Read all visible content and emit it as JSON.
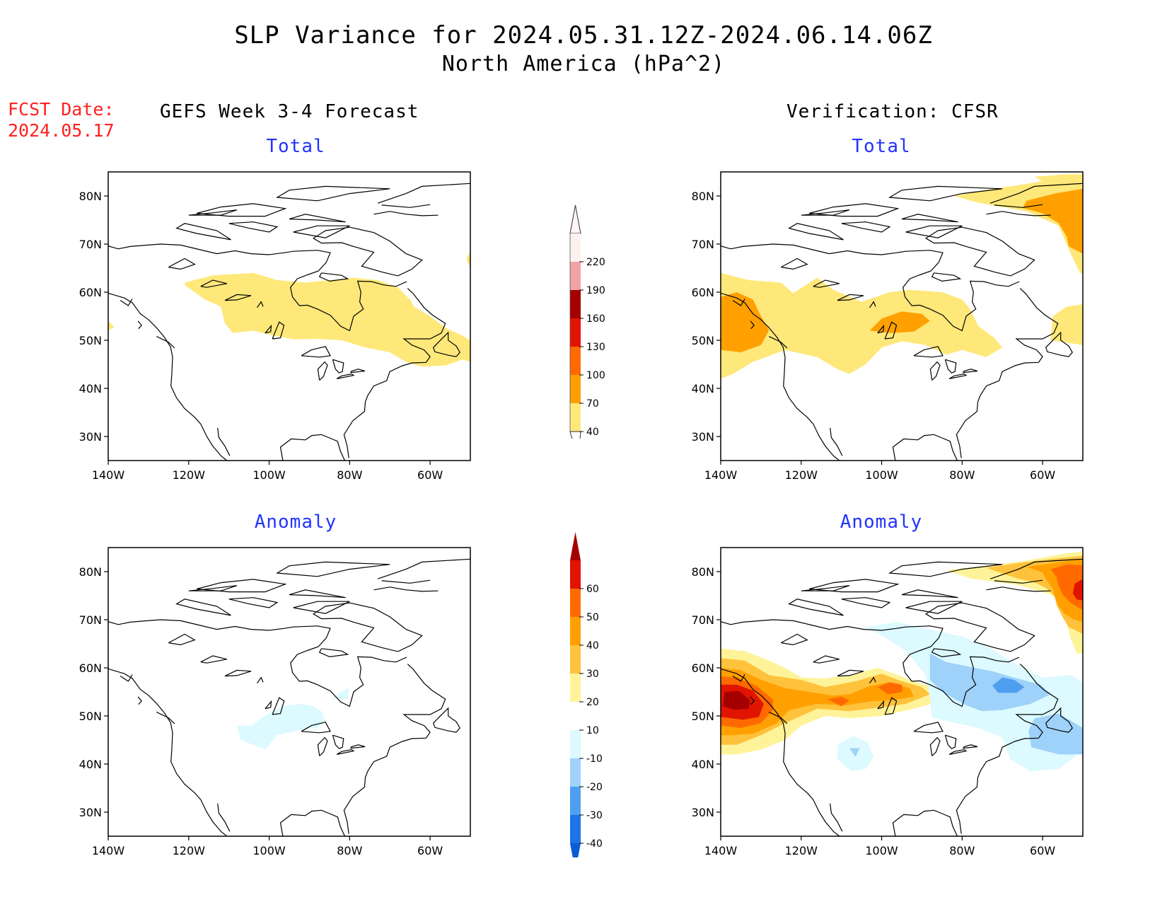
{
  "header": {
    "title_line1": "SLP Variance for 2024.05.31.12Z-2024.06.14.06Z",
    "title_line2": "North America (hPa^2)",
    "fcst_label": "FCST Date:",
    "fcst_date": "2024.05.17"
  },
  "columns": {
    "left": "GEFS Week 3-4 Forecast",
    "right": "Verification: CFSR"
  },
  "panels": {
    "tl": "Total",
    "tr": "Total",
    "bl": "Anomaly",
    "br": "Anomaly"
  },
  "axes": {
    "lon_ticks": [
      "140W",
      "120W",
      "100W",
      "80W",
      "60W"
    ],
    "lat_ticks": [
      "80N",
      "70N",
      "60N",
      "50N",
      "40N",
      "30N"
    ],
    "lon_range": [
      -140,
      -50
    ],
    "lat_range": [
      25,
      85
    ]
  },
  "total_colorbar": {
    "levels": [
      "220",
      "190",
      "160",
      "130",
      "100",
      "70",
      "40"
    ],
    "colors": [
      "#fff0f0",
      "#f2a3a6",
      "#a50000",
      "#e11400",
      "#ff6a00",
      "#ffa000",
      "#ffe87a"
    ]
  },
  "anomaly_colorbar": {
    "levels": [
      "60",
      "50",
      "40",
      "30",
      "20",
      "10",
      "-10",
      "-20",
      "-30",
      "-40"
    ],
    "colors": [
      "#a50000",
      "#e11400",
      "#ff6a00",
      "#ffa000",
      "#ffc23c",
      "#fff39a",
      "#ffffff",
      "#dcfaff",
      "#9fd2fa",
      "#4f9ff0",
      "#1e74e6",
      "#0b5cd6"
    ]
  }
}
